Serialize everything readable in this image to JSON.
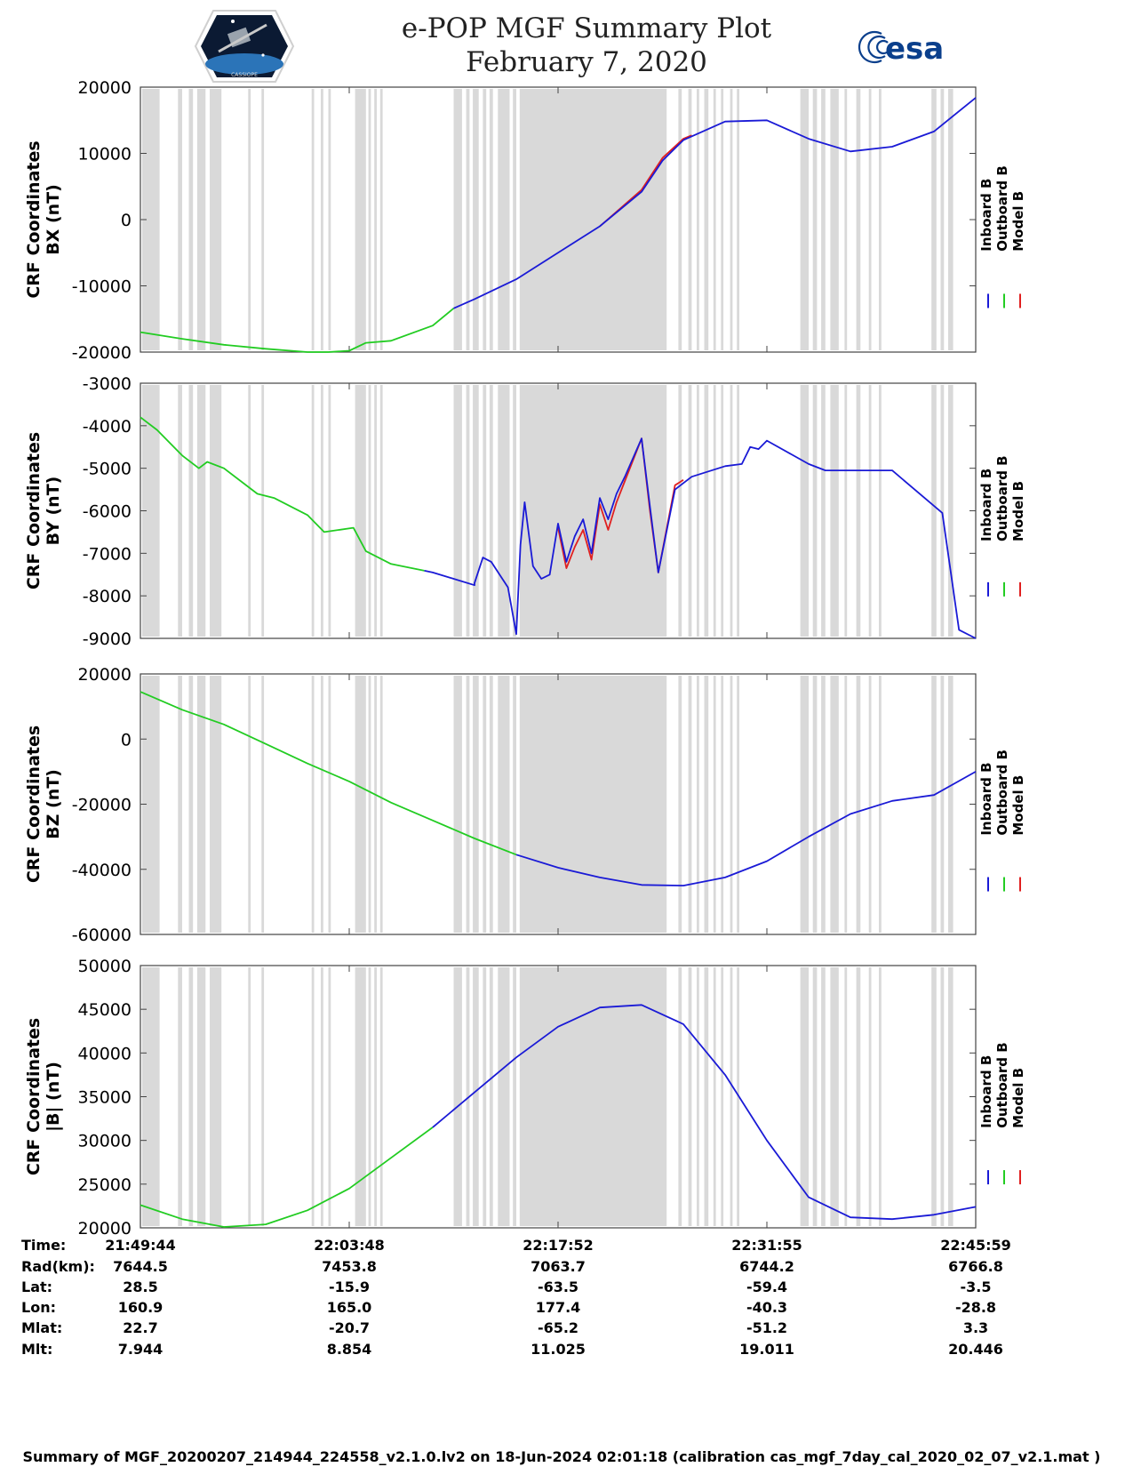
{
  "title": {
    "line1": "e-POP MGF Summary Plot",
    "line2": "February 7, 2020"
  },
  "logos": {
    "left_name": "CASSIOPE",
    "right_text": "esa"
  },
  "colors": {
    "inboard": "#1a1ad6",
    "outboard": "#22cc22",
    "model": "#e02020",
    "band": "#d9d9d9"
  },
  "x_ticks": [
    "21:49:44",
    "22:03:48",
    "22:17:52",
    "22:31:55",
    "22:45:59"
  ],
  "gray_bands": [
    [
      0.002,
      0.023
    ],
    [
      0.045,
      0.05
    ],
    [
      0.058,
      0.063
    ],
    [
      0.068,
      0.078
    ],
    [
      0.083,
      0.097
    ],
    [
      0.129,
      0.132
    ],
    [
      0.145,
      0.148
    ],
    [
      0.205,
      0.208
    ],
    [
      0.216,
      0.219
    ],
    [
      0.225,
      0.228
    ],
    [
      0.257,
      0.27
    ],
    [
      0.273,
      0.276
    ],
    [
      0.28,
      0.283
    ],
    [
      0.287,
      0.29
    ],
    [
      0.375,
      0.385
    ],
    [
      0.39,
      0.394
    ],
    [
      0.398,
      0.405
    ],
    [
      0.41,
      0.414
    ],
    [
      0.418,
      0.422
    ],
    [
      0.428,
      0.442
    ],
    [
      0.446,
      0.45
    ],
    [
      0.454,
      0.63
    ],
    [
      0.644,
      0.648
    ],
    [
      0.656,
      0.66
    ],
    [
      0.666,
      0.669
    ],
    [
      0.675,
      0.68
    ],
    [
      0.686,
      0.689
    ],
    [
      0.695,
      0.698
    ],
    [
      0.706,
      0.709
    ],
    [
      0.714,
      0.717
    ],
    [
      0.79,
      0.8
    ],
    [
      0.805,
      0.81
    ],
    [
      0.815,
      0.82
    ],
    [
      0.826,
      0.836
    ],
    [
      0.843,
      0.846
    ],
    [
      0.857,
      0.862
    ],
    [
      0.872,
      0.875
    ],
    [
      0.884,
      0.887
    ],
    [
      0.947,
      0.953
    ],
    [
      0.958,
      0.962
    ],
    [
      0.967,
      0.973
    ]
  ],
  "chart_data": [
    {
      "type": "line",
      "title": "",
      "ylabel_line1": "CRF Coordinates",
      "ylabel_line2": "BX (nT)",
      "ylim": [
        -20000,
        20000
      ],
      "yticks": [
        20000,
        10000,
        0,
        -10000,
        -20000
      ],
      "ytick_labels": [
        "20000",
        "10000",
        "0",
        "-10000",
        "-20000"
      ],
      "legend": [
        "Inboard B",
        "Outboard B",
        "Model B"
      ],
      "x": [
        0,
        0.05,
        0.1,
        0.15,
        0.2,
        0.225,
        0.25,
        0.27,
        0.3,
        0.35,
        0.375,
        0.4,
        0.45,
        0.5,
        0.55,
        0.6,
        0.625,
        0.65,
        0.7,
        0.75,
        0.8,
        0.85,
        0.9,
        0.95,
        1.0
      ],
      "series": [
        {
          "name": "Outboard B",
          "color_key": "outboard",
          "from": 0,
          "to": 0.375,
          "values": [
            -17000,
            -18000,
            -18900,
            -19500,
            -20000,
            -20000,
            -19800,
            -18600,
            -18300,
            -16000,
            -13400,
            -12000,
            -9000,
            -5000,
            -1000,
            4200,
            8900,
            12000,
            14800,
            15000,
            12200,
            10300,
            11000,
            13300,
            18400
          ]
        },
        {
          "name": "Inboard B",
          "color_key": "inboard",
          "from": 0.375,
          "to": 1.0,
          "values": [
            -17000,
            -18000,
            -18900,
            -19500,
            -20000,
            -20000,
            -19800,
            -18600,
            -18300,
            -16000,
            -13400,
            -12000,
            -9000,
            -5000,
            -1000,
            4200,
            8900,
            12000,
            14800,
            15000,
            12200,
            10300,
            11000,
            13300,
            18400
          ]
        },
        {
          "name": "Model B",
          "color_key": "model",
          "from": 0.55,
          "to": 0.66,
          "values": [
            -17000,
            -18000,
            -18900,
            -19500,
            -20000,
            -20000,
            -19800,
            -18600,
            -18300,
            -16000,
            -13400,
            -12000,
            -9000,
            -5000,
            -1000,
            4500,
            9300,
            12200,
            14800,
            15000,
            12200,
            10300,
            11000,
            13300,
            18400
          ]
        }
      ]
    },
    {
      "type": "line",
      "title": "",
      "ylabel_line1": "CRF Coordinates",
      "ylabel_line2": "BY (nT)",
      "ylim": [
        -9000,
        -3000
      ],
      "yticks": [
        -3000,
        -4000,
        -5000,
        -6000,
        -7000,
        -8000,
        -9000
      ],
      "ytick_labels": [
        "-3000",
        "-4000",
        "-5000",
        "-6000",
        "-7000",
        "-8000",
        "-9000"
      ],
      "legend": [
        "Inboard B",
        "Outboard B",
        "Model B"
      ],
      "x": [
        0,
        0.02,
        0.05,
        0.07,
        0.08,
        0.1,
        0.14,
        0.16,
        0.2,
        0.22,
        0.255,
        0.27,
        0.3,
        0.35,
        0.375,
        0.4,
        0.4,
        0.41,
        0.42,
        0.44,
        0.45,
        0.455,
        0.46,
        0.47,
        0.48,
        0.49,
        0.5,
        0.51,
        0.52,
        0.53,
        0.54,
        0.55,
        0.56,
        0.57,
        0.58,
        0.6,
        0.61,
        0.62,
        0.64,
        0.66,
        0.7,
        0.72,
        0.73,
        0.74,
        0.75,
        0.8,
        0.82,
        0.9,
        0.96,
        0.98,
        1.0
      ],
      "series": [
        {
          "name": "Outboard B",
          "color_key": "outboard",
          "from": 0,
          "to": 0.34,
          "values": [
            -3800,
            -4100,
            -4700,
            -5000,
            -4850,
            -5000,
            -5600,
            -5700,
            -6100,
            -6500,
            -6400,
            -6950,
            -7250,
            -7450,
            -7600,
            -7750,
            -7700,
            -7100,
            -7200,
            -7800,
            -8900,
            -6800,
            -5800,
            -7300,
            -7600,
            -7500,
            -6300,
            -7200,
            -6600,
            -6200,
            -7000,
            -5700,
            -6200,
            -5600,
            -5200,
            -4300,
            -5900,
            -7450,
            -5500,
            -5200,
            -4950,
            -4900,
            -4500,
            -4550,
            -4350,
            -4900,
            -5050,
            -5050,
            -6050,
            -8800,
            -9000
          ]
        },
        {
          "name": "Inboard B",
          "color_key": "inboard",
          "from": 0.34,
          "to": 1.0,
          "values": [
            -3800,
            -4100,
            -4700,
            -5000,
            -4850,
            -5000,
            -5600,
            -5700,
            -6100,
            -6500,
            -6400,
            -6950,
            -7250,
            -7450,
            -7600,
            -7750,
            -7700,
            -7100,
            -7200,
            -7800,
            -8900,
            -6800,
            -5800,
            -7300,
            -7600,
            -7500,
            -6300,
            -7200,
            -6600,
            -6200,
            -7000,
            -5700,
            -6200,
            -5600,
            -5200,
            -4300,
            -5900,
            -7450,
            -5500,
            -5200,
            -4950,
            -4900,
            -4500,
            -4550,
            -4350,
            -4900,
            -5050,
            -5050,
            -6050,
            -8800,
            -9000
          ]
        },
        {
          "name": "Model B",
          "color_key": "model",
          "from": 0.5,
          "to": 0.65,
          "values": [
            -3800,
            -4100,
            -4700,
            -5000,
            -4850,
            -5000,
            -5600,
            -5700,
            -6100,
            -6500,
            -6400,
            -6950,
            -7250,
            -7450,
            -7600,
            -7750,
            -7700,
            -7100,
            -7200,
            -7800,
            -8900,
            -6800,
            -5800,
            -7300,
            -7600,
            -7500,
            -6400,
            -7350,
            -6850,
            -6450,
            -7150,
            -5850,
            -6450,
            -5800,
            -5300,
            -4300,
            -6000,
            -7450,
            -5400,
            -5150,
            -4950,
            -4900,
            -4500,
            -4550,
            -4350,
            -4900,
            -5050,
            -5050,
            -6050,
            -8800,
            -9000
          ]
        }
      ]
    },
    {
      "type": "line",
      "title": "",
      "ylabel_line1": "CRF Coordinates",
      "ylabel_line2": "BZ (nT)",
      "ylim": [
        -60000,
        20000
      ],
      "yticks": [
        20000,
        0,
        -20000,
        -40000,
        -60000
      ],
      "ytick_labels": [
        "20000",
        "0",
        "-20000",
        "-40000",
        "-60000"
      ],
      "legend": [
        "Inboard B",
        "Outboard B",
        "Model B"
      ],
      "x": [
        0,
        0.05,
        0.1,
        0.15,
        0.2,
        0.25,
        0.3,
        0.35,
        0.4,
        0.45,
        0.5,
        0.55,
        0.6,
        0.65,
        0.7,
        0.75,
        0.8,
        0.85,
        0.9,
        0.95,
        1.0
      ],
      "series": [
        {
          "name": "Outboard B",
          "color_key": "outboard",
          "from": 0,
          "to": 0.45,
          "values": [
            14500,
            9000,
            4500,
            -1500,
            -7500,
            -13000,
            -19500,
            -25000,
            -30500,
            -35500,
            -39500,
            -42500,
            -44800,
            -45000,
            -42500,
            -37500,
            -30000,
            -23000,
            -19000,
            -17200,
            -10000
          ]
        },
        {
          "name": "Inboard B",
          "color_key": "inboard",
          "from": 0.45,
          "to": 1.0,
          "values": [
            14500,
            9000,
            4500,
            -1500,
            -7500,
            -13000,
            -19500,
            -25000,
            -30500,
            -35500,
            -39500,
            -42500,
            -44800,
            -45000,
            -42500,
            -37500,
            -30000,
            -23000,
            -19000,
            -17200,
            -10000
          ]
        }
      ]
    },
    {
      "type": "line",
      "title": "",
      "ylabel_line1": "CRF Coordinates",
      "ylabel_line2": "|B| (nT)",
      "ylim": [
        20000,
        50000
      ],
      "yticks": [
        50000,
        45000,
        40000,
        35000,
        30000,
        25000,
        20000
      ],
      "ytick_labels": [
        "50000",
        "45000",
        "40000",
        "35000",
        "30000",
        "25000",
        "20000"
      ],
      "legend": [
        "Inboard B",
        "Outboard B",
        "Model B"
      ],
      "x": [
        0,
        0.05,
        0.1,
        0.15,
        0.2,
        0.25,
        0.3,
        0.35,
        0.4,
        0.45,
        0.5,
        0.55,
        0.6,
        0.65,
        0.7,
        0.75,
        0.8,
        0.85,
        0.9,
        0.95,
        1.0
      ],
      "series": [
        {
          "name": "Outboard B",
          "color_key": "outboard",
          "from": 0,
          "to": 0.35,
          "values": [
            22600,
            21000,
            20100,
            20400,
            22000,
            24500,
            28000,
            31500,
            35500,
            39500,
            43000,
            45200,
            45500,
            43300,
            37500,
            30000,
            23500,
            21200,
            21000,
            21500,
            22400
          ]
        },
        {
          "name": "Inboard B",
          "color_key": "inboard",
          "from": 0.35,
          "to": 1.0,
          "values": [
            22600,
            21000,
            20100,
            20400,
            22000,
            24500,
            28000,
            31500,
            35500,
            39500,
            43000,
            45200,
            45500,
            43300,
            37500,
            30000,
            23500,
            21200,
            21000,
            21500,
            22400
          ]
        }
      ]
    }
  ],
  "info_table": {
    "labels": [
      "Time:",
      "Rad(km):",
      "Lat:",
      "Lon:",
      "Mlat:",
      "Mlt:"
    ],
    "columns": [
      [
        "21:49:44",
        "7644.5",
        "28.5",
        "160.9",
        "22.7",
        "7.944"
      ],
      [
        "22:03:48",
        "7453.8",
        "-15.9",
        "165.0",
        "-20.7",
        "8.854"
      ],
      [
        "22:17:52",
        "7063.7",
        "-63.5",
        "177.4",
        "-65.2",
        "11.025"
      ],
      [
        "22:31:55",
        "6744.2",
        "-59.4",
        "-40.3",
        "-51.2",
        "19.011"
      ],
      [
        "22:45:59",
        "6766.8",
        "-3.5",
        "-28.8",
        "3.3",
        "20.446"
      ]
    ]
  },
  "footer": "Summary of MGF_20200207_214944_224558_v2.1.0.lv2 on 18-Jun-2024 02:01:18 (calibration cas_mgf_7day_cal_2020_02_07_v2.1.mat )"
}
